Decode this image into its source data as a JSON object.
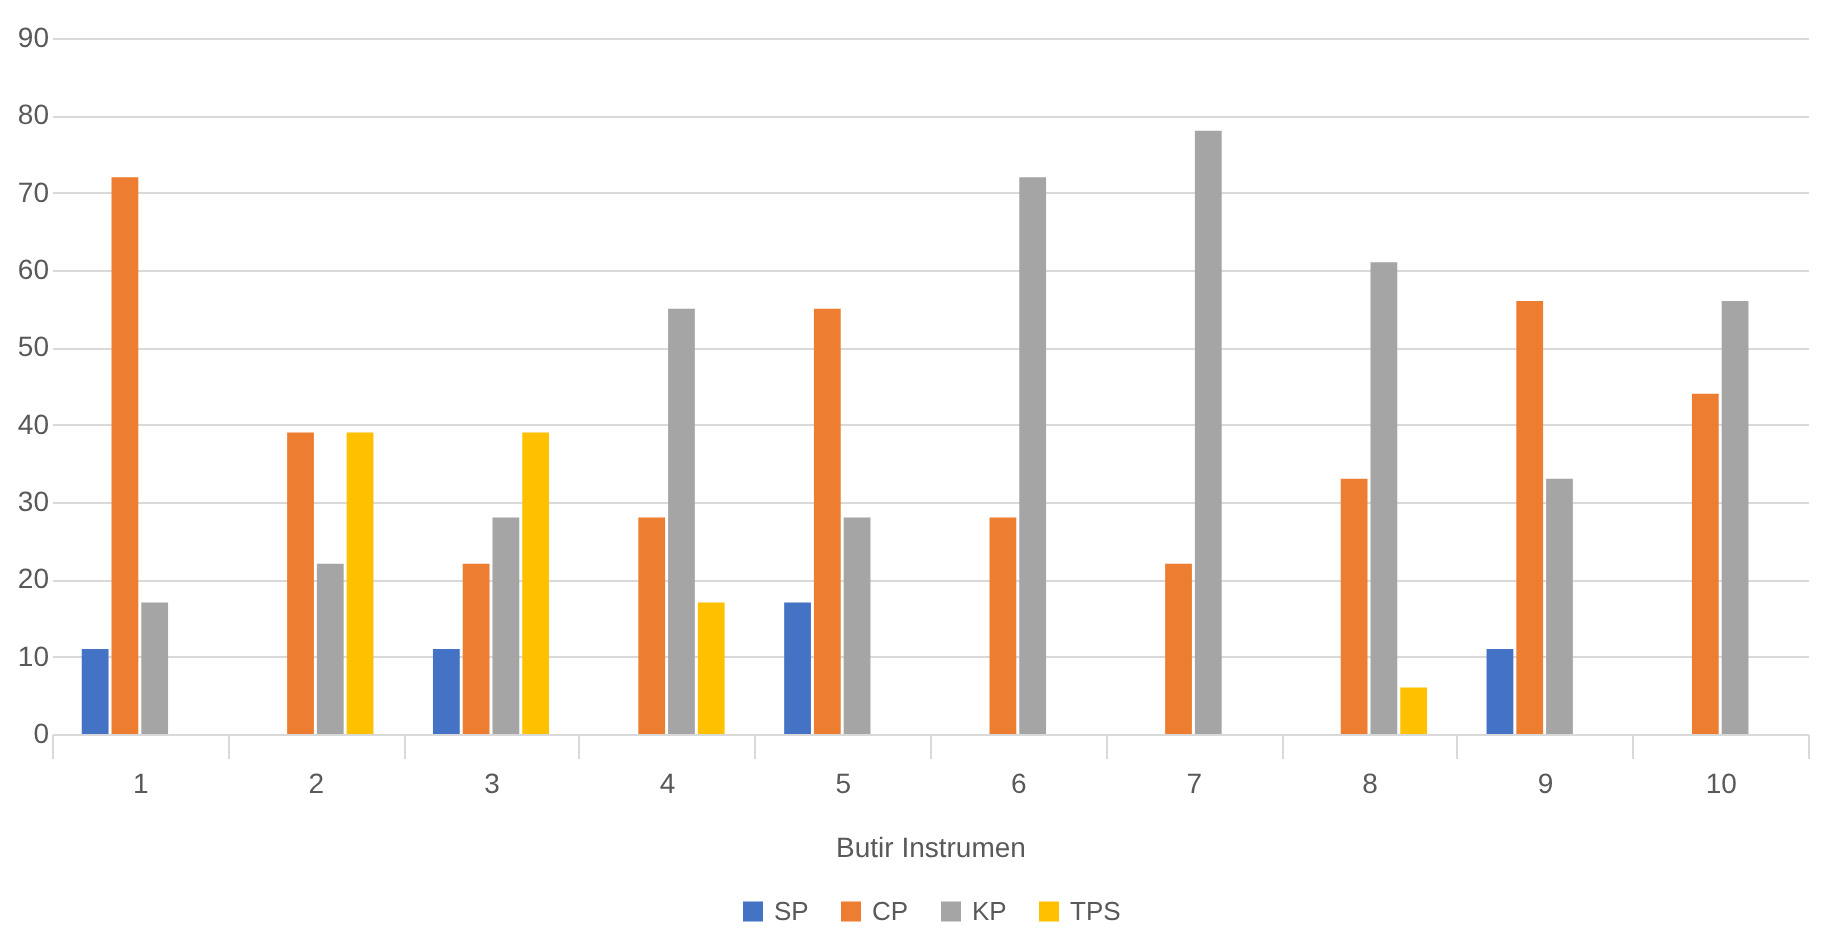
{
  "chart_data": {
    "type": "bar",
    "xlabel": "Butir Instrumen",
    "categories": [
      "1",
      "2",
      "3",
      "4",
      "5",
      "6",
      "7",
      "8",
      "9",
      "10"
    ],
    "series": [
      {
        "name": "SP",
        "color": "#4472c4",
        "values": [
          11,
          0,
          11,
          0,
          17,
          0,
          0,
          0,
          11,
          0
        ]
      },
      {
        "name": "CP",
        "color": "#ed7d31",
        "values": [
          72,
          39,
          22,
          28,
          55,
          28,
          22,
          33,
          56,
          44
        ]
      },
      {
        "name": "KP",
        "color": "#a5a5a5",
        "values": [
          17,
          22,
          28,
          55,
          28,
          72,
          78,
          61,
          33,
          56
        ]
      },
      {
        "name": "TPS",
        "color": "#ffc000",
        "values": [
          0,
          39,
          39,
          17,
          0,
          0,
          0,
          6,
          0,
          0
        ]
      }
    ],
    "ylim": [
      0,
      90
    ],
    "yticks": [
      0,
      10,
      20,
      30,
      40,
      50,
      60,
      70,
      80,
      90
    ],
    "grid": "y",
    "legend": "bottom"
  }
}
